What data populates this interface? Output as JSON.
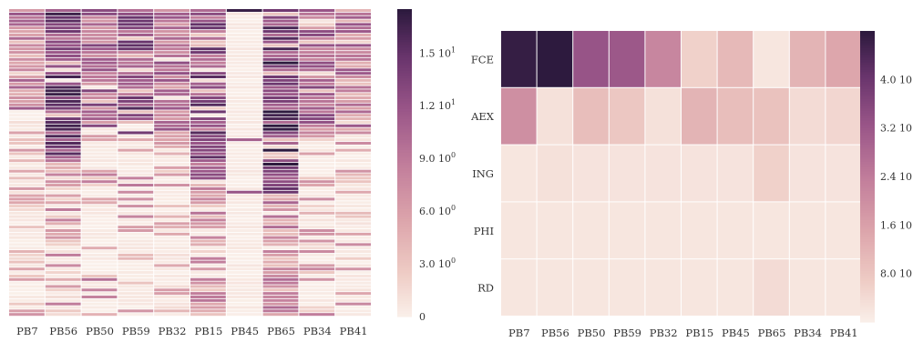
{
  "chart_data": [
    {
      "type": "heatmap",
      "title": "",
      "xlabel": "",
      "ylabel": "",
      "columns": [
        "PB7",
        "PB56",
        "PB50",
        "PB59",
        "PB32",
        "PB15",
        "PB45",
        "PB65",
        "PB34",
        "PB41"
      ],
      "rows": 88,
      "row_labels": [],
      "color_range": [
        0,
        17.5
      ],
      "colorbar_ticks": [
        {
          "value": 0,
          "label": "0"
        },
        {
          "value": 3.0,
          "label": "3.0 10",
          "exp": "0"
        },
        {
          "value": 6.0,
          "label": "6.0 10",
          "exp": "0"
        },
        {
          "value": 9.0,
          "label": "9.0 10",
          "exp": "0"
        },
        {
          "value": 12.0,
          "label": "1.2 10",
          "exp": "1"
        },
        {
          "value": 15.0,
          "label": "1.5 10",
          "exp": "1"
        }
      ],
      "column_profiles": [
        {
          "column": "PB7",
          "dense_until": 0.32,
          "dense_mean": 8,
          "sparse_mean": 3,
          "sparse_fill": 0.55
        },
        {
          "column": "PB56",
          "dense_until": 0.5,
          "dense_mean": 13,
          "sparse_mean": 5,
          "sparse_fill": 0.75
        },
        {
          "column": "PB50",
          "dense_until": 0.38,
          "dense_mean": 10,
          "sparse_mean": 6,
          "sparse_fill": 0.35
        },
        {
          "column": "PB59",
          "dense_until": 0.4,
          "dense_mean": 12,
          "sparse_mean": 7,
          "sparse_fill": 0.4
        },
        {
          "column": "PB32",
          "dense_until": 0.45,
          "dense_mean": 9,
          "sparse_mean": 4,
          "sparse_fill": 0.35
        },
        {
          "column": "PB15",
          "dense_until": 0.55,
          "dense_mean": 12,
          "sparse_mean": 6,
          "sparse_fill": 0.7
        },
        {
          "column": "PB45",
          "dense_until": 0.0,
          "dense_mean": 0,
          "sparse_mean": 0,
          "sparse_fill": 0.0
        },
        {
          "column": "PB65",
          "dense_until": 0.6,
          "dense_mean": 14,
          "sparse_mean": 7,
          "sparse_fill": 0.95
        },
        {
          "column": "PB34",
          "dense_until": 0.4,
          "dense_mean": 10,
          "sparse_mean": 5,
          "sparse_fill": 0.35
        },
        {
          "column": "PB41",
          "dense_until": 0.4,
          "dense_mean": 8,
          "sparse_mean": 4,
          "sparse_fill": 0.4
        }
      ],
      "special_rows": [
        {
          "column": "PB45",
          "row_fraction": 0.0,
          "value": 17
        },
        {
          "column": "PB45",
          "row_fraction": 0.42,
          "value": 11
        },
        {
          "column": "PB45",
          "row_fraction": 0.6,
          "value": 12
        }
      ]
    },
    {
      "type": "heatmap",
      "title": "",
      "xlabel": "",
      "ylabel": "",
      "columns": [
        "PB7",
        "PB56",
        "PB50",
        "PB59",
        "PB32",
        "PB15",
        "PB45",
        "PB65",
        "PB34",
        "PB41"
      ],
      "rows": [
        "FCE",
        "AEX",
        "ING",
        "PHI",
        "RD"
      ],
      "values": [
        [
          47,
          48,
          33,
          32,
          22,
          6,
          11,
          2,
          12,
          15
        ],
        [
          20,
          3,
          10,
          8,
          3,
          12,
          10,
          9,
          4,
          5
        ],
        [
          2,
          3,
          2.5,
          2.5,
          2.5,
          2.5,
          2.5,
          6,
          2.5,
          2.5
        ],
        [
          2,
          2,
          2,
          2,
          2,
          2,
          2,
          2,
          2,
          2
        ],
        [
          2,
          2,
          2,
          2,
          2,
          2,
          2,
          4,
          2,
          2
        ]
      ],
      "color_range": [
        0,
        48
      ],
      "colorbar_ticks": [
        {
          "value": 8,
          "label": "8.0 10"
        },
        {
          "value": 16,
          "label": "1.6 10"
        },
        {
          "value": 24,
          "label": "2.4 10"
        },
        {
          "value": 32,
          "label": "3.2 10"
        },
        {
          "value": 40,
          "label": "4.0 10"
        }
      ]
    }
  ]
}
